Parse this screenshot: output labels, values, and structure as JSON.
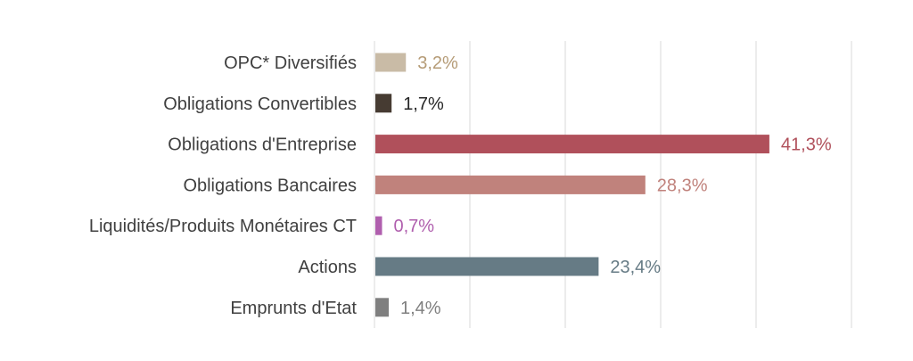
{
  "chart_data": {
    "type": "bar",
    "orientation": "horizontal",
    "categories": [
      "OPC* Diversifiés",
      "Obligations Convertibles",
      "Obligations d'Entreprise",
      "Obligations Bancaires",
      "Liquidités/Produits Monétaires CT",
      "Actions",
      "Emprunts d'Etat"
    ],
    "values": [
      3.2,
      1.7,
      41.3,
      28.3,
      0.7,
      23.4,
      1.4
    ],
    "value_labels": [
      "3,2%",
      "1,7%",
      "41,3%",
      "28,3%",
      "0,7%",
      "23,4%",
      "1,4%"
    ],
    "colors": [
      "#c9bba6",
      "#463b32",
      "#b0505b",
      "#c0827c",
      "#b05fae",
      "#667b85",
      "#7f7f7f"
    ],
    "label_colors": [
      "#b59b76",
      "#262626",
      "#b0505b",
      "#c0827c",
      "#b05fae",
      "#667b85",
      "#7f7f7f"
    ],
    "xlim": [
      0,
      50
    ],
    "grid": true,
    "legend": "none"
  }
}
